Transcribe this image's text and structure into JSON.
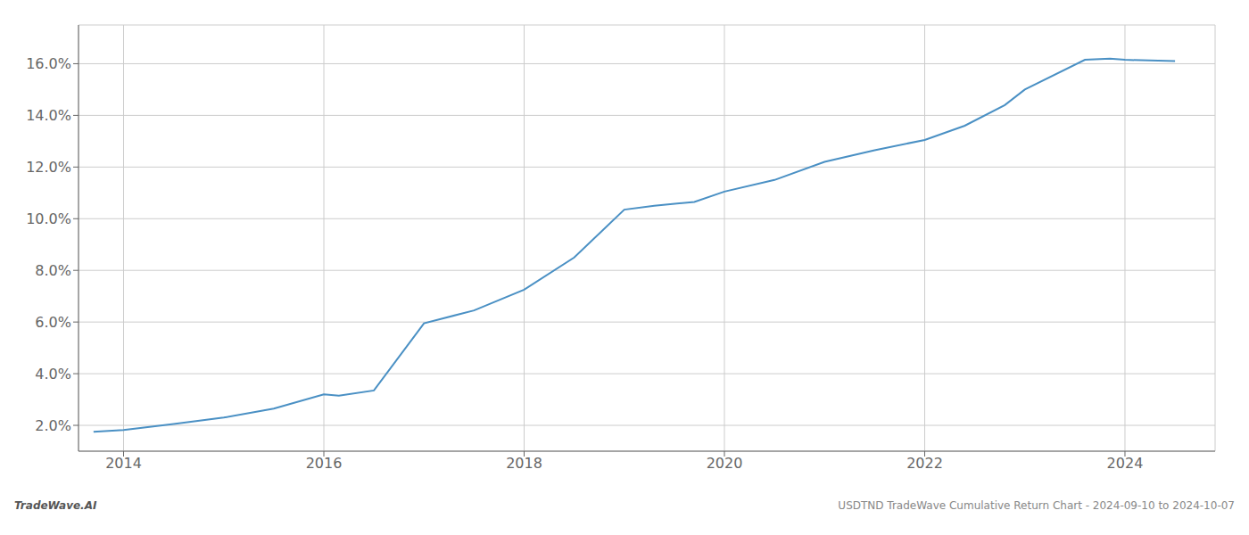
{
  "chart_data": {
    "type": "line",
    "annotations": [
      "TradeWave.AI",
      "USDTND TradeWave Cumulative Return Chart - 2024-09-10 to 2024-10-07"
    ],
    "x": [
      2013.7,
      2014.0,
      2014.5,
      2015.0,
      2015.5,
      2016.0,
      2016.15,
      2016.5,
      2017.0,
      2017.5,
      2018.0,
      2018.5,
      2019.0,
      2019.3,
      2019.7,
      2020.0,
      2020.5,
      2021.0,
      2021.5,
      2022.0,
      2022.4,
      2022.8,
      2023.0,
      2023.6,
      2023.85,
      2024.0,
      2024.5
    ],
    "values": [
      1.75,
      1.82,
      2.05,
      2.3,
      2.65,
      3.2,
      3.15,
      3.35,
      5.95,
      6.45,
      7.25,
      8.5,
      10.35,
      10.5,
      10.65,
      11.05,
      11.5,
      12.2,
      12.65,
      13.05,
      13.6,
      14.4,
      15.0,
      16.15,
      16.2,
      16.15,
      16.1
    ],
    "color": "#4a90c4",
    "xlim": [
      2013.55,
      2024.9
    ],
    "ylim": [
      1.0,
      17.5
    ],
    "xticks": [
      2014,
      2016,
      2018,
      2020,
      2022,
      2024
    ],
    "yticks": [
      {
        "value": 2.0,
        "label": "2.0%"
      },
      {
        "value": 4.0,
        "label": "4.0%"
      },
      {
        "value": 6.0,
        "label": "6.0%"
      },
      {
        "value": 8.0,
        "label": "8.0%"
      },
      {
        "value": 10.0,
        "label": "10.0%"
      },
      {
        "value": 12.0,
        "label": "12.0%"
      },
      {
        "value": 14.0,
        "label": "14.0%"
      },
      {
        "value": 16.0,
        "label": "16.0%"
      }
    ],
    "grid": true
  }
}
